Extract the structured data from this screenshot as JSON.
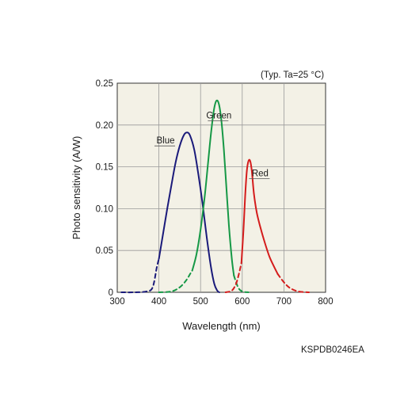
{
  "conditions_note": "(Typ. Ta=25 °C)",
  "doc_code": "KSPDB0246EA",
  "chart_data": {
    "type": "line",
    "title": "",
    "xlabel": "Wavelength (nm)",
    "ylabel": "Photo sensitivity (A/W)",
    "xlim": [
      300,
      800
    ],
    "ylim": [
      0,
      0.25
    ],
    "x_ticks": [
      "300",
      "400",
      "500",
      "600",
      "700",
      "800"
    ],
    "y_ticks": [
      "0",
      "0.05",
      "0.10",
      "0.15",
      "0.20",
      "0.25"
    ],
    "grid": true,
    "plot_background": "#f3f1e6",
    "series": [
      {
        "name": "Blue",
        "color": "#1a1a7a",
        "dashed": [
          [
            310,
            0
          ],
          [
            340,
            0
          ],
          [
            370,
            0.001
          ],
          [
            385,
            0.006
          ],
          [
            395,
            0.03
          ],
          [
            400,
            0.04
          ]
        ],
        "solid": [
          [
            400,
            0.04
          ],
          [
            410,
            0.07
          ],
          [
            420,
            0.1
          ],
          [
            430,
            0.128
          ],
          [
            440,
            0.155
          ],
          [
            450,
            0.175
          ],
          [
            460,
            0.188
          ],
          [
            468,
            0.191
          ],
          [
            475,
            0.187
          ],
          [
            485,
            0.17
          ],
          [
            495,
            0.14
          ],
          [
            505,
            0.105
          ],
          [
            515,
            0.065
          ],
          [
            525,
            0.03
          ],
          [
            533,
            0.01
          ],
          [
            540,
            0.002
          ],
          [
            545,
            0
          ]
        ],
        "label_anchor": [
          435,
          0.175
        ]
      },
      {
        "name": "Green",
        "color": "#169846",
        "dashed": [
          [
            400,
            0
          ],
          [
            430,
            0.001
          ],
          [
            450,
            0.006
          ],
          [
            465,
            0.014
          ],
          [
            475,
            0.022
          ],
          [
            480,
            0.026
          ]
        ],
        "solid": [
          [
            480,
            0.026
          ],
          [
            490,
            0.045
          ],
          [
            500,
            0.075
          ],
          [
            510,
            0.115
          ],
          [
            518,
            0.155
          ],
          [
            525,
            0.19
          ],
          [
            532,
            0.218
          ],
          [
            538,
            0.229
          ],
          [
            544,
            0.225
          ],
          [
            550,
            0.205
          ],
          [
            556,
            0.17
          ],
          [
            562,
            0.125
          ],
          [
            568,
            0.08
          ],
          [
            575,
            0.04
          ],
          [
            580,
            0.02
          ]
        ],
        "dashed_tail": [
          [
            580,
            0.02
          ],
          [
            590,
            0.006
          ],
          [
            600,
            0.001
          ],
          [
            615,
            0
          ]
        ],
        "label_anchor": [
          563,
          0.205
        ]
      },
      {
        "name": "Red",
        "color": "#d41c1c",
        "dashed": [
          [
            560,
            0
          ],
          [
            575,
            0.002
          ],
          [
            585,
            0.01
          ],
          [
            592,
            0.022
          ],
          [
            598,
            0.035
          ]
        ],
        "solid": [
          [
            598,
            0.035
          ],
          [
            603,
            0.075
          ],
          [
            607,
            0.115
          ],
          [
            611,
            0.145
          ],
          [
            615,
            0.157
          ],
          [
            619,
            0.157
          ],
          [
            623,
            0.145
          ],
          [
            628,
            0.118
          ],
          [
            635,
            0.095
          ],
          [
            645,
            0.075
          ],
          [
            655,
            0.058
          ],
          [
            665,
            0.043
          ],
          [
            675,
            0.032
          ],
          [
            685,
            0.022
          ]
        ],
        "dashed_tail": [
          [
            685,
            0.022
          ],
          [
            700,
            0.012
          ],
          [
            715,
            0.005
          ],
          [
            735,
            0.001
          ],
          [
            760,
            0
          ]
        ],
        "label_anchor": [
          662,
          0.136
        ]
      }
    ]
  }
}
